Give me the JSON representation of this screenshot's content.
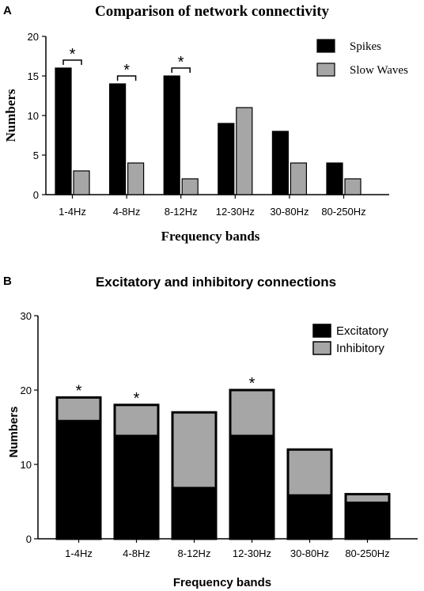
{
  "chart_data": [
    {
      "panel": "A",
      "type": "bar",
      "title": "Comparison of network connectivity",
      "xlabel": "Frequency bands",
      "ylabel": "Numbers",
      "ylim": [
        0,
        20
      ],
      "yticks": [
        "0",
        "5",
        "10",
        "15",
        "20"
      ],
      "categories": [
        "1-4Hz",
        "4-8Hz",
        "8-12Hz",
        "12-30Hz",
        "30-80Hz",
        "80-250Hz"
      ],
      "series": [
        {
          "name": "Spikes",
          "values": [
            16,
            14,
            15,
            9,
            8,
            4
          ],
          "color": "#000000"
        },
        {
          "name": "Slow Waves",
          "values": [
            3,
            4,
            2,
            11,
            4,
            2
          ],
          "color": "#a6a6a6"
        }
      ],
      "significance": [
        true,
        true,
        true,
        false,
        false,
        false
      ],
      "significance_mark": "*",
      "legend_position": "top-right"
    },
    {
      "panel": "B",
      "type": "bar",
      "stacked": true,
      "title": "Excitatory and inhibitory connections",
      "xlabel": "Frequency bands",
      "ylabel": "Numbers",
      "ylim": [
        0,
        30
      ],
      "yticks": [
        "0",
        "10",
        "20",
        "30"
      ],
      "categories": [
        "1-4Hz",
        "4-8Hz",
        "8-12Hz",
        "12-30Hz",
        "30-80Hz",
        "80-250Hz"
      ],
      "series": [
        {
          "name": "Excitatory",
          "values": [
            16,
            14,
            7,
            14,
            6,
            5
          ],
          "color": "#000000"
        },
        {
          "name": "Inhibitory",
          "values": [
            3,
            4,
            10,
            6,
            6,
            1
          ],
          "color": "#a6a6a6"
        }
      ],
      "significance": [
        true,
        true,
        false,
        true,
        false,
        false
      ],
      "significance_mark": "*",
      "legend_position": "top-right"
    }
  ]
}
